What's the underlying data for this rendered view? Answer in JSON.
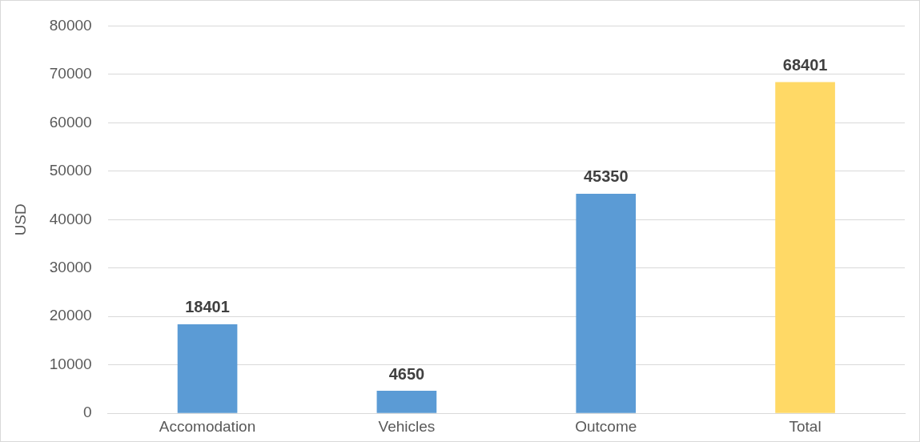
{
  "chart_data": {
    "type": "bar",
    "ylabel": "USD",
    "categories": [
      "Accomodation",
      "Vehicles",
      "Outcome",
      "Total"
    ],
    "values": [
      18401,
      4650,
      45350,
      68401
    ],
    "colors": [
      "#5b9bd5",
      "#5b9bd5",
      "#5b9bd5",
      "#ffd966"
    ],
    "ylim": [
      0,
      80000
    ],
    "yticks": [
      0,
      10000,
      20000,
      30000,
      40000,
      50000,
      60000,
      70000,
      80000
    ],
    "grid": "y",
    "data_labels": true
  }
}
